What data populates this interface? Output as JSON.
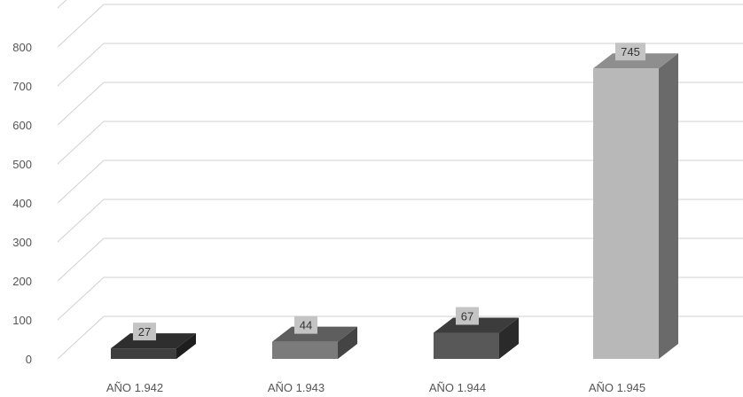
{
  "chart_data": {
    "type": "bar",
    "style": "3d-column",
    "title": "",
    "xlabel": "",
    "ylabel": "",
    "categories": [
      "AÑO 1.942",
      "AÑO 1.943",
      "AÑO 1.944",
      "AÑO 1.945"
    ],
    "values": [
      27,
      44,
      67,
      745
    ],
    "data_labels": [
      "27",
      "44",
      "67",
      "745"
    ],
    "ylim": [
      0,
      900
    ],
    "yticks": [
      "0",
      "100",
      "200",
      "300",
      "400",
      "500",
      "600",
      "700",
      "800"
    ],
    "grid": true,
    "legend": "none",
    "colors": {
      "bar_fronts": [
        "#3f3f3f",
        "#7b7b7b",
        "#585858",
        "#b8b8b8"
      ],
      "bar_tops": [
        "#2e2e2e",
        "#5e5e5e",
        "#3c3c3c",
        "#8e8e8e"
      ],
      "bar_sides": [
        "#1e1e1e",
        "#444444",
        "#2a2a2a",
        "#6a6a6a"
      ],
      "gridline": "#d0d0d0",
      "label_box": "#c4c4c4"
    }
  }
}
